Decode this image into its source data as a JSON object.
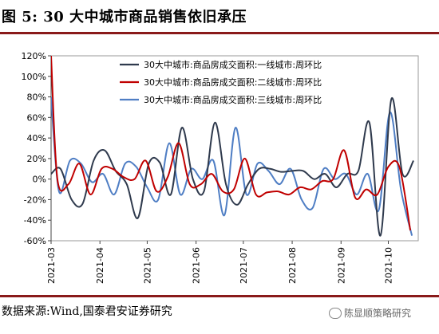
{
  "figure": {
    "title": "图 5:  30 大中城市商品销售依旧承压",
    "source": "数据来源:Wind,国泰君安证券研究",
    "watermark": "陈显顺策略研究"
  },
  "colors": {
    "tier1": "#2f3a4d",
    "tier2": "#c00000",
    "tier3": "#4f7ec4",
    "frame_rule": "#8a1a1a"
  },
  "chart_data": {
    "type": "line",
    "ylim": [
      -60,
      120
    ],
    "y_ticks": [
      -60,
      -40,
      -20,
      0,
      20,
      40,
      60,
      80,
      100,
      120
    ],
    "y_tick_labels": [
      "-60%",
      "-40%",
      "-20%",
      "0%",
      "20%",
      "40%",
      "60%",
      "80%",
      "100%",
      "120%"
    ],
    "x_range": [
      "2021-03-01",
      "2021-10-20"
    ],
    "x_ticks": [
      "2021-03",
      "2021-04",
      "2021-05",
      "2021-06",
      "2021-07",
      "2021-08",
      "2021-09",
      "2021-10"
    ],
    "legend_position": "top-right",
    "series": [
      {
        "name": "30大中城市:商品房成交面积:一线城市:周环比",
        "color_key": "tier1",
        "points": [
          [
            "2021-03-01",
            5
          ],
          [
            "2021-03-07",
            10
          ],
          [
            "2021-03-14",
            -20
          ],
          [
            "2021-03-21",
            -24
          ],
          [
            "2021-03-28",
            18
          ],
          [
            "2021-04-04",
            28
          ],
          [
            "2021-04-11",
            8
          ],
          [
            "2021-04-18",
            -5
          ],
          [
            "2021-04-25",
            -38
          ],
          [
            "2021-05-02",
            15
          ],
          [
            "2021-05-09",
            16
          ],
          [
            "2021-05-16",
            -15
          ],
          [
            "2021-05-23",
            50
          ],
          [
            "2021-05-30",
            0
          ],
          [
            "2021-06-06",
            -12
          ],
          [
            "2021-06-13",
            55
          ],
          [
            "2021-06-20",
            -5
          ],
          [
            "2021-06-27",
            -25
          ],
          [
            "2021-07-04",
            -5
          ],
          [
            "2021-07-11",
            10
          ],
          [
            "2021-07-18",
            10
          ],
          [
            "2021-07-25",
            7
          ],
          [
            "2021-08-01",
            8
          ],
          [
            "2021-08-08",
            8
          ],
          [
            "2021-08-15",
            0
          ],
          [
            "2021-08-22",
            5
          ],
          [
            "2021-08-29",
            -8
          ],
          [
            "2021-09-05",
            5
          ],
          [
            "2021-09-12",
            8
          ],
          [
            "2021-09-19",
            55
          ],
          [
            "2021-09-26",
            -55
          ],
          [
            "2021-10-03",
            78
          ],
          [
            "2021-10-10",
            5
          ],
          [
            "2021-10-17",
            18
          ]
        ]
      },
      {
        "name": "30大中城市:商品房成交面积:二线城市:周环比",
        "color_key": "tier2",
        "points": [
          [
            "2021-03-01",
            120
          ],
          [
            "2021-03-05",
            0
          ],
          [
            "2021-03-12",
            -5
          ],
          [
            "2021-03-19",
            15
          ],
          [
            "2021-03-26",
            -15
          ],
          [
            "2021-04-02",
            10
          ],
          [
            "2021-04-09",
            10
          ],
          [
            "2021-04-16",
            2
          ],
          [
            "2021-04-23",
            0
          ],
          [
            "2021-04-30",
            18
          ],
          [
            "2021-05-07",
            -12
          ],
          [
            "2021-05-14",
            2
          ],
          [
            "2021-05-21",
            35
          ],
          [
            "2021-05-28",
            -5
          ],
          [
            "2021-06-04",
            -5
          ],
          [
            "2021-06-11",
            5
          ],
          [
            "2021-06-18",
            -12
          ],
          [
            "2021-06-25",
            -10
          ],
          [
            "2021-07-02",
            20
          ],
          [
            "2021-07-09",
            -15
          ],
          [
            "2021-07-16",
            -13
          ],
          [
            "2021-07-23",
            -12
          ],
          [
            "2021-07-30",
            -15
          ],
          [
            "2021-08-06",
            -8
          ],
          [
            "2021-08-13",
            -10
          ],
          [
            "2021-08-20",
            -2
          ],
          [
            "2021-08-27",
            0
          ],
          [
            "2021-09-03",
            28
          ],
          [
            "2021-09-10",
            -18
          ],
          [
            "2021-09-17",
            -10
          ],
          [
            "2021-09-24",
            -15
          ],
          [
            "2021-10-01",
            12
          ],
          [
            "2021-10-08",
            12
          ],
          [
            "2021-10-15",
            -50
          ]
        ]
      },
      {
        "name": "30大中城市:商品房成交面积:三线城市:周环比",
        "color_key": "tier3",
        "points": [
          [
            "2021-03-01",
            80
          ],
          [
            "2021-03-06",
            -12
          ],
          [
            "2021-03-13",
            18
          ],
          [
            "2021-03-20",
            15
          ],
          [
            "2021-03-27",
            -3
          ],
          [
            "2021-04-03",
            5
          ],
          [
            "2021-04-10",
            -15
          ],
          [
            "2021-04-17",
            15
          ],
          [
            "2021-04-24",
            12
          ],
          [
            "2021-05-01",
            -8
          ],
          [
            "2021-05-08",
            -20
          ],
          [
            "2021-05-15",
            35
          ],
          [
            "2021-05-22",
            -15
          ],
          [
            "2021-05-29",
            10
          ],
          [
            "2021-06-05",
            0
          ],
          [
            "2021-06-12",
            18
          ],
          [
            "2021-06-19",
            -35
          ],
          [
            "2021-06-26",
            50
          ],
          [
            "2021-07-03",
            -15
          ],
          [
            "2021-07-10",
            15
          ],
          [
            "2021-07-17",
            8
          ],
          [
            "2021-07-24",
            -5
          ],
          [
            "2021-07-31",
            10
          ],
          [
            "2021-08-07",
            -20
          ],
          [
            "2021-08-14",
            -28
          ],
          [
            "2021-08-21",
            10
          ],
          [
            "2021-08-28",
            0
          ],
          [
            "2021-09-04",
            5
          ],
          [
            "2021-09-11",
            -15
          ],
          [
            "2021-09-18",
            5
          ],
          [
            "2021-09-25",
            -30
          ],
          [
            "2021-10-02",
            65
          ],
          [
            "2021-10-09",
            -10
          ],
          [
            "2021-10-16",
            -55
          ]
        ]
      }
    ]
  }
}
